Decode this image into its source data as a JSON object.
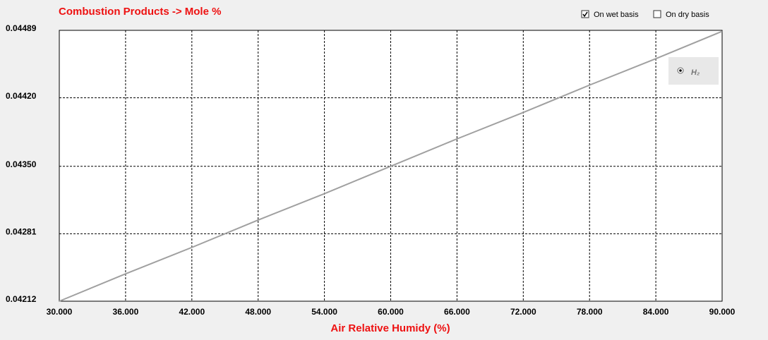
{
  "chart_data": {
    "type": "line",
    "title": "Combustion Products -> Mole %",
    "x_label": "Air Relative Humidy (%)",
    "options": [
      {
        "label": "On wet basis",
        "checked": true
      },
      {
        "label": "On dry basis",
        "checked": false
      }
    ],
    "x": [
      30,
      36,
      42,
      48,
      54,
      60,
      66,
      72,
      78,
      84,
      90
    ],
    "series": [
      {
        "name": "H₂",
        "color": "#a0a0a0",
        "values": [
          0.04212,
          0.0424,
          0.04267,
          0.04295,
          0.04322,
          0.0435,
          0.04378,
          0.04405,
          0.04433,
          0.0446,
          0.04488
        ]
      }
    ],
    "xlim": [
      30,
      90
    ],
    "xticks": [
      {
        "value": 30,
        "label": "30.000"
      },
      {
        "value": 36,
        "label": "36.000"
      },
      {
        "value": 42,
        "label": "42.000"
      },
      {
        "value": 48,
        "label": "48.000"
      },
      {
        "value": 54,
        "label": "54.000"
      },
      {
        "value": 60,
        "label": "60.000"
      },
      {
        "value": 66,
        "label": "66.000"
      },
      {
        "value": 72,
        "label": "72.000"
      },
      {
        "value": 78,
        "label": "78.000"
      },
      {
        "value": 84,
        "label": "84.000"
      },
      {
        "value": 90,
        "label": "90.000"
      }
    ],
    "ylim": [
      0.04212,
      0.04489
    ],
    "yticks": [
      0.04212,
      0.04281,
      {
        "value": 0.0435,
        "label": "0.04350"
      },
      {
        "value": 0.0442,
        "label": "0.04420"
      },
      0.04489
    ],
    "grid": true
  }
}
